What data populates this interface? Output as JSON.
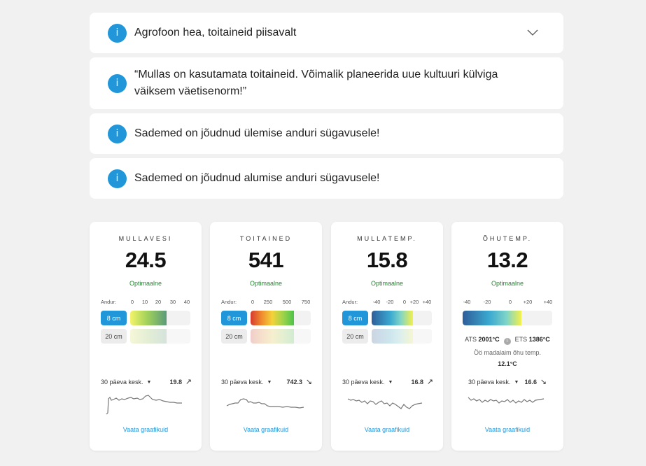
{
  "alerts": [
    {
      "text": "Agrofoon hea, toitaineid piisavalt"
    },
    {
      "text": "“Mullas on kasutamata toitaineid. Võimalik planeerida uue kultuuri külviga väiksem väetisenorm!”"
    },
    {
      "text": "Sademed on jõudnud ülemise anduri sügavusele!"
    },
    {
      "text": "Sademed on jõudnud alumise anduri sügavusele!"
    }
  ],
  "icon_glyph": "i",
  "cards": [
    {
      "title": "MULLAVESI",
      "value": "24.5",
      "status": "Optimaalne",
      "scale_label": "Andur:",
      "scale": [
        "0",
        "10",
        "20",
        "30",
        "40"
      ],
      "depths": [
        "8 cm",
        "20 cm"
      ],
      "level_8cm": 0.6,
      "level_20cm": 0.6,
      "avg_label": "30 päeva kesk.",
      "avg_value": "19.8",
      "trend": "↗",
      "link": "Vaata graafikuid"
    },
    {
      "title": "TOITAINED",
      "value": "541",
      "status": "Optimaalne",
      "scale_label": "Andur:",
      "scale": [
        "0",
        "250",
        "500",
        "750"
      ],
      "depths": [
        "8 cm",
        "20 cm"
      ],
      "level_8cm": 0.72,
      "level_20cm": 0.72,
      "avg_label": "30 päeva kesk.",
      "avg_value": "742.3",
      "trend": "↘",
      "link": "Vaata graafikuid"
    },
    {
      "title": "MULLATEMP.",
      "value": "15.8",
      "status": "Optimaalne",
      "scale_label": "Andur:",
      "scale": [
        "-40",
        "-20",
        "0",
        "+20",
        "+40"
      ],
      "depths": [
        "8 cm",
        "20 cm"
      ],
      "level_8cm": 0.69,
      "level_20cm": 0.69,
      "avg_label": "30 päeva kesk.",
      "avg_value": "16.8",
      "trend": "↗",
      "link": "Vaata graafikuid"
    },
    {
      "title": "ÕHUTEMP.",
      "value": "13.2",
      "status": "Optimaalne",
      "scale": [
        "-40",
        "-20",
        "0",
        "+20",
        "+40"
      ],
      "level": 0.66,
      "ats_label": "ATS",
      "ats_value": "2001°C",
      "ets_label": "ETS",
      "ets_value": "1386°C",
      "night_label": "Öö madalaim õhu temp.",
      "night_value": "12.1°C",
      "avg_label": "30 päeva kesk.",
      "avg_value": "16.6",
      "trend": "↘",
      "link": "Vaata graafikuid"
    }
  ],
  "colors": {
    "accent": "#2196d8",
    "status_ok": "#1f8a2c",
    "background": "#f1f1f1"
  }
}
